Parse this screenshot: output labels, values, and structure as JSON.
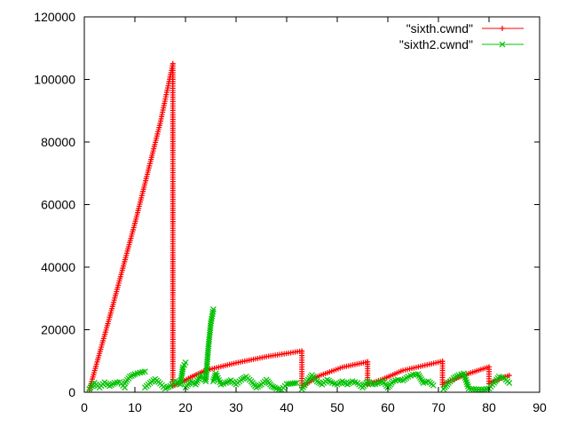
{
  "chart_data": {
    "type": "scatter",
    "title": "",
    "xlabel": "",
    "ylabel": "",
    "xlim": [
      0,
      90
    ],
    "ylim": [
      0,
      120000
    ],
    "x_ticks": [
      "0",
      "10",
      "20",
      "30",
      "40",
      "50",
      "60",
      "70",
      "80",
      "90"
    ],
    "y_ticks": [
      "0",
      "20000",
      "40000",
      "60000",
      "80000",
      "100000",
      "120000"
    ],
    "grid": false,
    "legend_position": "top-right",
    "series": [
      {
        "name": "\"sixth.cwnd\"",
        "color": "#ff0000",
        "marker": "plus",
        "line": true,
        "segments": [
          [
            [
              1.0,
              800
            ],
            [
              5.0,
              24000
            ],
            [
              10.0,
              54000
            ],
            [
              15.0,
              86000
            ],
            [
              17.5,
              105000
            ]
          ],
          [
            [
              17.5,
              105000
            ],
            [
              17.5,
              2000
            ]
          ],
          [
            [
              17.5,
              2000
            ],
            [
              19.0,
              3000
            ],
            [
              21.0,
              4800
            ],
            [
              24.0,
              7000
            ],
            [
              30.0,
              9400
            ],
            [
              36.0,
              11400
            ],
            [
              43.0,
              13200
            ]
          ],
          [
            [
              43.0,
              13200
            ],
            [
              43.0,
              1500
            ]
          ],
          [
            [
              43.0,
              1500
            ],
            [
              46.0,
              5000
            ],
            [
              51.0,
              8000
            ],
            [
              56.0,
              9700
            ]
          ],
          [
            [
              56.0,
              9700
            ],
            [
              56.0,
              2500
            ]
          ],
          [
            [
              56.0,
              2500
            ],
            [
              59.0,
              4200
            ],
            [
              63.0,
              7000
            ],
            [
              70.8,
              9900
            ]
          ],
          [
            [
              70.8,
              9900
            ],
            [
              70.8,
              2500
            ]
          ],
          [
            [
              70.8,
              2500
            ],
            [
              72.0,
              3500
            ],
            [
              76.0,
              6000
            ],
            [
              80.0,
              8100
            ]
          ],
          [
            [
              80.0,
              8100
            ],
            [
              80.0,
              2800
            ]
          ],
          [
            [
              80.0,
              2800
            ],
            [
              82.0,
              4300
            ],
            [
              84.0,
              5400
            ]
          ]
        ]
      },
      {
        "name": "\"sixth2.cwnd\"",
        "color": "#00c000",
        "marker": "x",
        "line": true,
        "segments": [
          [
            [
              1.0,
              1000
            ],
            [
              2.0,
              3000
            ],
            [
              3.0,
              1500
            ],
            [
              4.0,
              3200
            ],
            [
              5.0,
              2000
            ],
            [
              6.0,
              3000
            ],
            [
              7.0,
              3300
            ],
            [
              8.0,
              1500
            ]
          ],
          [
            [
              8.0,
              2800
            ],
            [
              9.0,
              5000
            ],
            [
              10.0,
              5800
            ],
            [
              11.0,
              6300
            ],
            [
              12.0,
              6600
            ]
          ],
          [
            [
              12.0,
              1500
            ],
            [
              13.0,
              3000
            ],
            [
              14.0,
              4200
            ],
            [
              15.0,
              2800
            ],
            [
              16.0,
              1200
            ],
            [
              17.0,
              2000
            ],
            [
              18.0,
              3600
            ],
            [
              19.0,
              2500
            ],
            [
              19.5,
              8000
            ],
            [
              20.0,
              9500
            ]
          ],
          [
            [
              20.0,
              1500
            ],
            [
              21.0,
              3500
            ],
            [
              22.0,
              2500
            ],
            [
              23.0,
              5500
            ],
            [
              24.0,
              3500
            ],
            [
              24.5,
              14000
            ],
            [
              25.0,
              22000
            ],
            [
              25.5,
              26500
            ]
          ],
          [
            [
              25.5,
              3500
            ],
            [
              26.0,
              6000
            ],
            [
              27.0,
              2500
            ],
            [
              28.0,
              3000
            ],
            [
              29.0,
              3800
            ],
            [
              30.0,
              2500
            ],
            [
              31.0,
              4000
            ],
            [
              32.0,
              5000
            ],
            [
              33.0,
              3500
            ],
            [
              34.0,
              1500
            ],
            [
              35.0,
              2500
            ],
            [
              36.0,
              4000
            ],
            [
              37.0,
              2000
            ],
            [
              38.0,
              1200
            ],
            [
              39.0,
              800
            ],
            [
              40.0,
              2600
            ],
            [
              42.0,
              3000
            ]
          ],
          [
            [
              43.0,
              1000
            ],
            [
              44.0,
              3500
            ],
            [
              45.0,
              5500
            ],
            [
              46.0,
              3500
            ],
            [
              47.0,
              2500
            ],
            [
              48.0,
              4000
            ],
            [
              49.0,
              3000
            ],
            [
              50.0,
              2500
            ],
            [
              51.0,
              3500
            ],
            [
              52.0,
              2500
            ],
            [
              53.0,
              3500
            ],
            [
              54.0,
              3000
            ],
            [
              55.0,
              1500
            ],
            [
              56.0,
              3500
            ],
            [
              57.0,
              2500
            ],
            [
              58.0,
              2800
            ],
            [
              59.0,
              3600
            ],
            [
              60.0,
              1500
            ],
            [
              61.0,
              3500
            ],
            [
              62.0,
              4000
            ],
            [
              63.0,
              3800
            ],
            [
              64.0,
              5000
            ],
            [
              65.0,
              5600
            ],
            [
              66.0,
              5800
            ],
            [
              67.0,
              3000
            ],
            [
              68.0,
              3500
            ],
            [
              69.0,
              2200
            ]
          ],
          [
            [
              71.0,
              1000
            ],
            [
              72.0,
              3000
            ],
            [
              73.0,
              4500
            ],
            [
              74.0,
              5500
            ],
            [
              75.0,
              6000
            ],
            [
              76.0,
              1200
            ],
            [
              77.0,
              1000
            ],
            [
              78.0,
              900
            ],
            [
              79.0,
              900
            ],
            [
              80.0,
              1200
            ],
            [
              81.0,
              3000
            ],
            [
              82.0,
              5000
            ],
            [
              83.0,
              4500
            ],
            [
              84.0,
              3000
            ]
          ]
        ]
      }
    ]
  }
}
